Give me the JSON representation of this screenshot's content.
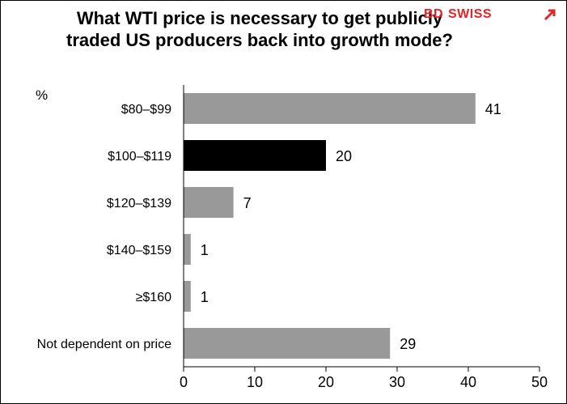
{
  "chart_data": {
    "type": "bar",
    "orientation": "horizontal",
    "title": "What WTI price is necessary to get publicly traded US producers back into growth mode?",
    "unit_label": "%",
    "categories": [
      "$80–$99",
      "$100–$119",
      "$120–$139",
      "$140–$159",
      "≥$160",
      "Not dependent on price"
    ],
    "values": [
      41,
      20,
      7,
      1,
      1,
      29
    ],
    "data_labels": [
      "41",
      "20",
      "7",
      "1",
      "1",
      "29"
    ],
    "bar_colors": [
      "#999999",
      "#000000",
      "#999999",
      "#999999",
      "#999999",
      "#999999"
    ],
    "xlim": [
      0,
      50
    ],
    "xticks": [
      0,
      10,
      20,
      30,
      40,
      50
    ],
    "xtick_labels": [
      "0",
      "10",
      "20",
      "30",
      "40",
      "50"
    ],
    "grid": false,
    "legend": "none"
  },
  "logo": {
    "text_left": "BD",
    "text_right": "SWISS",
    "color": "#e52226"
  }
}
